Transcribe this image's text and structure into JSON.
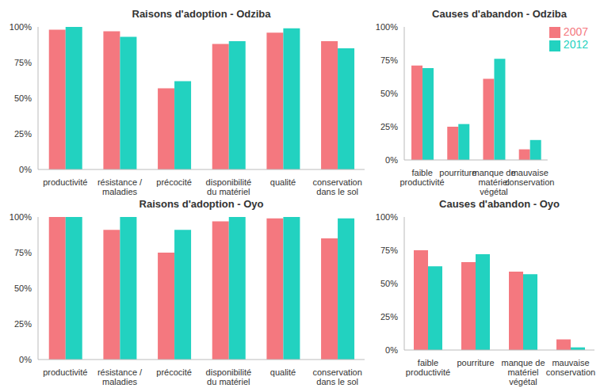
{
  "chart_data": [
    {
      "type": "bar",
      "title": "Raisons d'adoption - Odziba",
      "categories": [
        "productivité",
        "résistance / maladies",
        "précocité",
        "disponibilité du matériel",
        "qualité",
        "conservation dans le sol"
      ],
      "series": [
        {
          "name": "2007",
          "color": "#f4787f",
          "values": [
            98,
            97,
            57,
            88,
            96,
            90
          ]
        },
        {
          "name": "2012",
          "color": "#22d2c0",
          "values": [
            100,
            93,
            62,
            90,
            99,
            85
          ]
        }
      ],
      "ylim": [
        0,
        100
      ],
      "yticks": [
        {
          "value": 0,
          "label": "0%"
        },
        {
          "value": 25,
          "label": "25%"
        },
        {
          "value": 50,
          "label": "50%"
        },
        {
          "value": 75,
          "label": "75%"
        },
        {
          "value": 100,
          "label": "100%"
        }
      ],
      "grid": false
    },
    {
      "type": "bar",
      "title": "Causes d'abandon - Odziba",
      "categories": [
        "faible productivité",
        "pourriture",
        "manque de matériel végétal",
        "mauvaise conservation"
      ],
      "series": [
        {
          "name": "2007",
          "color": "#f4787f",
          "values": [
            71,
            25,
            61,
            8
          ]
        },
        {
          "name": "2012",
          "color": "#22d2c0",
          "values": [
            69,
            27,
            76,
            15
          ]
        }
      ],
      "ylim": [
        0,
        100
      ],
      "yticks": [
        {
          "value": 0,
          "label": "0%"
        },
        {
          "value": 25,
          "label": "25%"
        },
        {
          "value": 50,
          "label": "50%"
        },
        {
          "value": 75,
          "label": "75%"
        },
        {
          "value": 100,
          "label": "100%"
        }
      ],
      "grid": false,
      "legend": "upper right"
    },
    {
      "type": "bar",
      "title": "Raisons d'adoption - Oyo",
      "categories": [
        "productivité",
        "résistance / maladies",
        "précocité",
        "disponibilité du matériel",
        "qualité",
        "conservation dans le sol"
      ],
      "series": [
        {
          "name": "2007",
          "color": "#f4787f",
          "values": [
            100,
            91,
            75,
            97,
            99,
            85
          ]
        },
        {
          "name": "2012",
          "color": "#22d2c0",
          "values": [
            100,
            100,
            91,
            100,
            100,
            99
          ]
        }
      ],
      "ylim": [
        0,
        100
      ],
      "yticks": [
        {
          "value": 0,
          "label": "0%"
        },
        {
          "value": 25,
          "label": "25%"
        },
        {
          "value": 50,
          "label": "50%"
        },
        {
          "value": 75,
          "label": "75%"
        },
        {
          "value": 100,
          "label": "100%"
        }
      ],
      "grid": false
    },
    {
      "type": "bar",
      "title": "Causes d'abandon - Oyo",
      "categories": [
        "faible productivité",
        "pourriture",
        "manque de matériel végétal",
        "mauvaise conservation"
      ],
      "series": [
        {
          "name": "2007",
          "color": "#f4787f",
          "values": [
            75,
            66,
            59,
            8
          ]
        },
        {
          "name": "2012",
          "color": "#22d2c0",
          "values": [
            63,
            72,
            57,
            2
          ]
        }
      ],
      "ylim": [
        0,
        100
      ],
      "yticks": [
        {
          "value": 0,
          "label": "0%"
        },
        {
          "value": 25,
          "label": "25%"
        },
        {
          "value": 50,
          "label": "50%"
        },
        {
          "value": 75,
          "label": "75%"
        },
        {
          "value": 100,
          "label": "100%"
        }
      ],
      "grid": false
    }
  ]
}
